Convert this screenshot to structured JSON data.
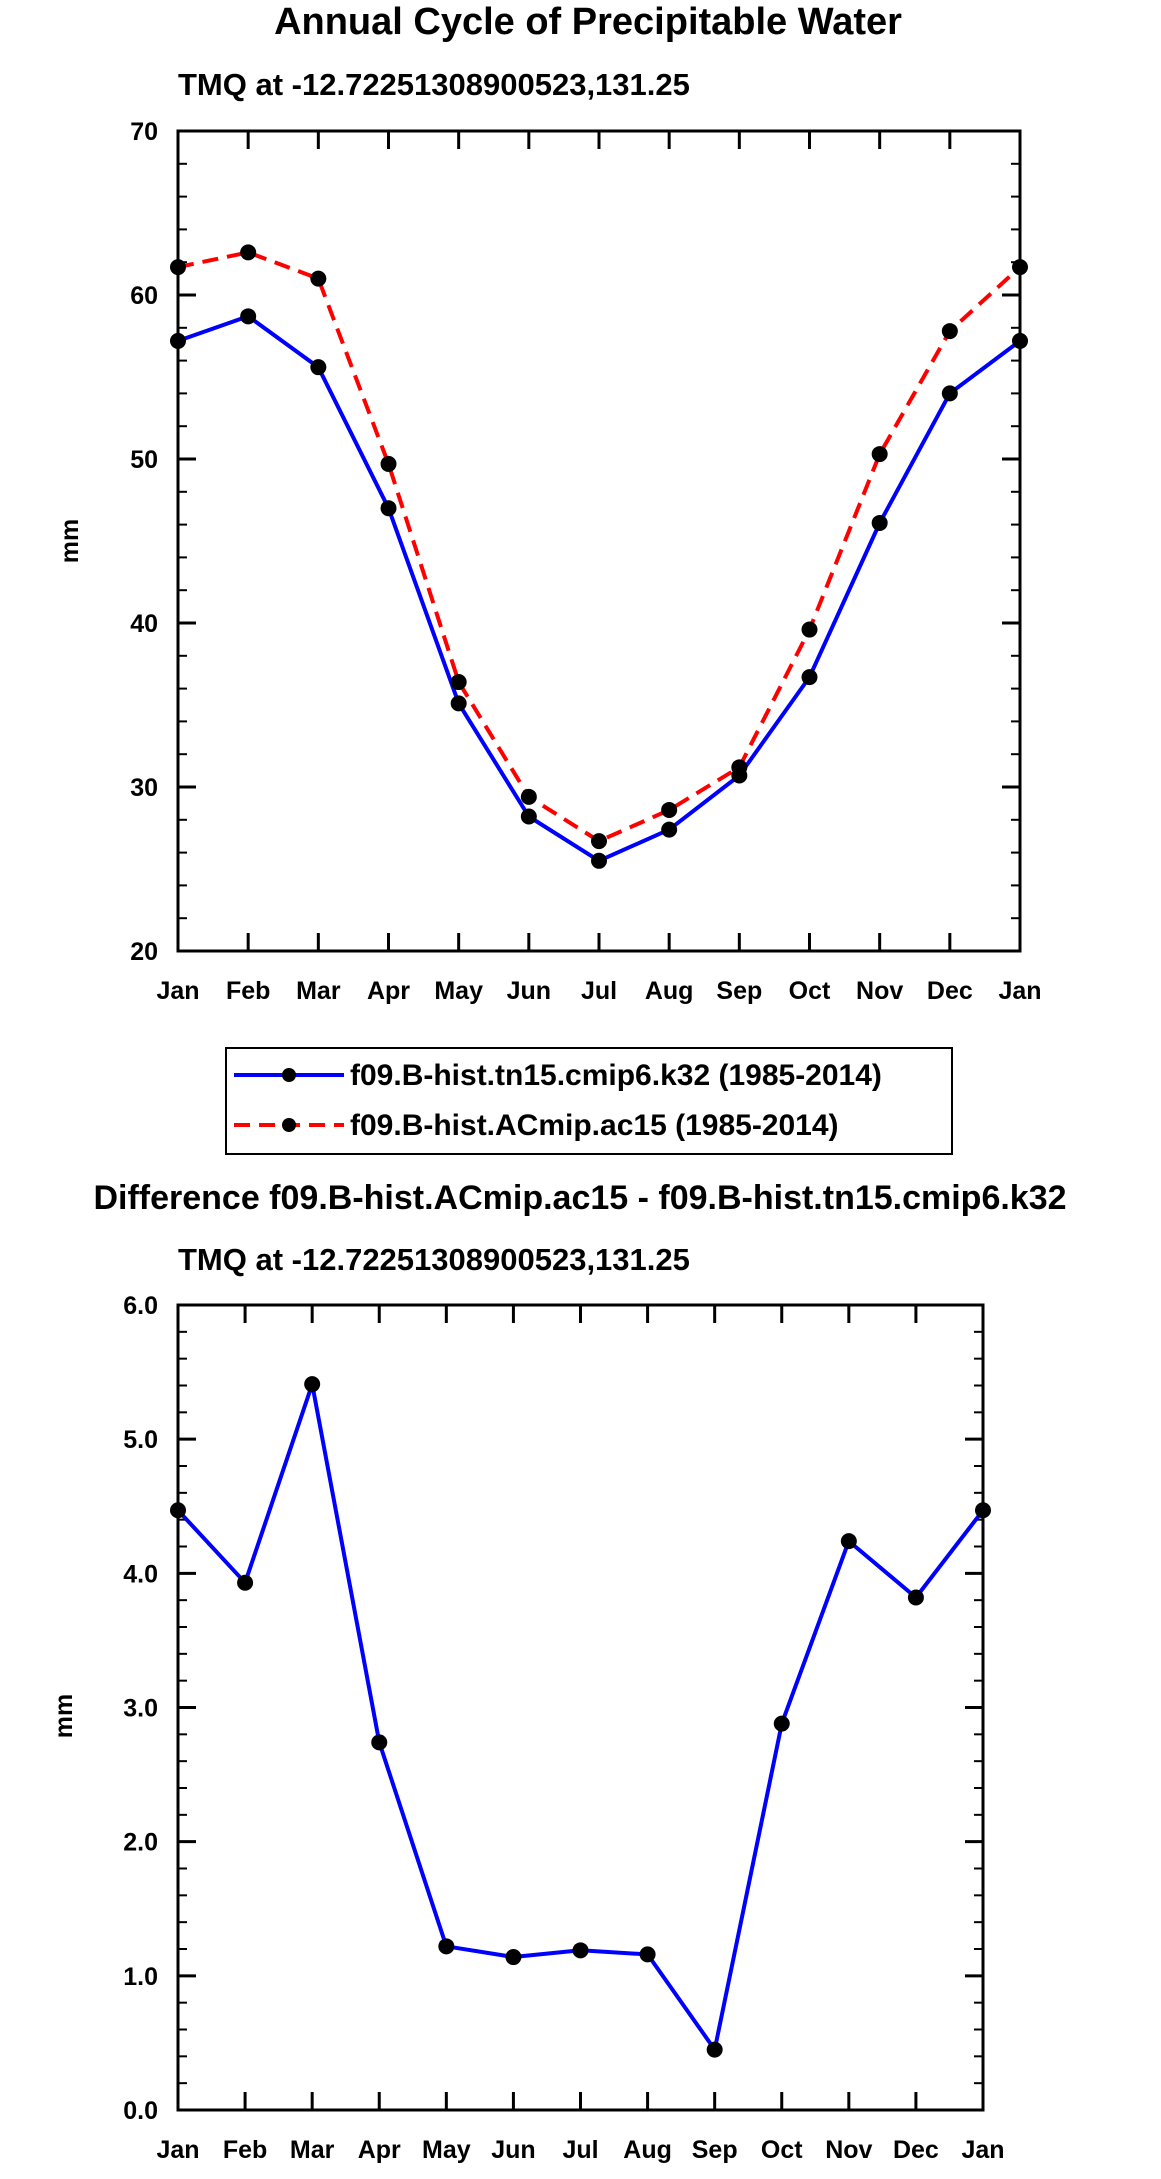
{
  "chart_data": [
    {
      "type": "line",
      "title": "Annual Cycle of Precipitable Water",
      "subtitle": "TMQ at -12.72251308900523,131.25",
      "xlabel": "",
      "ylabel": "mm",
      "categories": [
        "Jan",
        "Feb",
        "Mar",
        "Apr",
        "May",
        "Jun",
        "Jul",
        "Aug",
        "Sep",
        "Oct",
        "Nov",
        "Dec",
        "Jan"
      ],
      "ylim": [
        20,
        70
      ],
      "yticks": [
        20,
        30,
        40,
        50,
        60,
        70
      ],
      "ytick_labels": [
        "20",
        "30",
        "40",
        "50",
        "60",
        "70"
      ],
      "grid": false,
      "legend_position": "bottom-center",
      "series": [
        {
          "name": "f09.B-hist.tn15.cmip6.k32 (1985-2014)",
          "color": "#0000ff",
          "line_style": "solid",
          "marker": "filled-circle",
          "values": [
            57.2,
            58.7,
            55.6,
            47.0,
            35.1,
            28.2,
            25.5,
            27.4,
            30.7,
            36.7,
            46.1,
            54.0,
            57.2
          ]
        },
        {
          "name": "f09.B-hist.ACmip.ac15 (1985-2014)",
          "color": "#ff0000",
          "line_style": "dashed",
          "marker": "filled-circle",
          "values": [
            61.7,
            62.6,
            61.0,
            49.7,
            36.4,
            29.4,
            26.7,
            28.6,
            31.2,
            39.6,
            50.3,
            57.8,
            61.7
          ]
        }
      ]
    },
    {
      "type": "line",
      "title": "Difference f09.B-hist.ACmip.ac15 - f09.B-hist.tn15.cmip6.k32",
      "subtitle": "TMQ at -12.72251308900523,131.25",
      "xlabel": "",
      "ylabel": "mm",
      "categories": [
        "Jan",
        "Feb",
        "Mar",
        "Apr",
        "May",
        "Jun",
        "Jul",
        "Aug",
        "Sep",
        "Oct",
        "Nov",
        "Dec",
        "Jan"
      ],
      "ylim": [
        0,
        6
      ],
      "yticks": [
        0,
        1,
        2,
        3,
        4,
        5,
        6
      ],
      "ytick_labels": [
        "0.0",
        "1.0",
        "2.0",
        "3.0",
        "4.0",
        "5.0",
        "6.0"
      ],
      "grid": false,
      "series": [
        {
          "name": "difference",
          "color": "#0000ff",
          "line_style": "solid",
          "marker": "filled-circle",
          "values": [
            4.47,
            3.93,
            5.41,
            2.74,
            1.22,
            1.14,
            1.19,
            1.16,
            0.45,
            2.88,
            4.24,
            3.82,
            4.47
          ]
        }
      ]
    }
  ]
}
